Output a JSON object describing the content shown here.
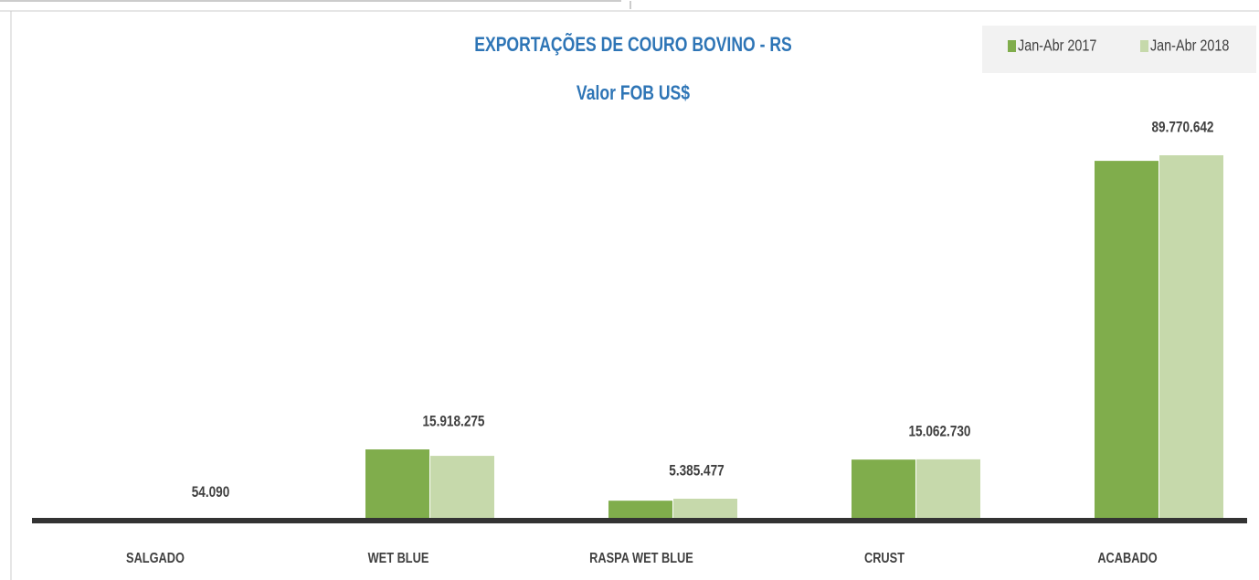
{
  "chart_data": {
    "type": "bar",
    "title": "EXPORTAÇÕES  DE COURO BOVINO  - RS",
    "subtitle": "Valor  FOB US$",
    "categories": [
      "SALGADO",
      "WET BLUE",
      "RASPA WET BLUE",
      "CRUST",
      "ACABADO"
    ],
    "series": [
      {
        "name": "Jan-Abr 2017",
        "color": "#80ad4c",
        "values": [
          0,
          17500000,
          4900000,
          15000000,
          88400000
        ]
      },
      {
        "name": "Jan-Abr 2018",
        "color": "#c6d9ab",
        "values": [
          54090,
          15918275,
          5385477,
          15062730,
          89770642
        ],
        "value_labels": [
          "54.090",
          "15.918.275",
          "5.385.477",
          "15.062.730",
          "89.770.642"
        ]
      }
    ],
    "legend": "top-right"
  }
}
